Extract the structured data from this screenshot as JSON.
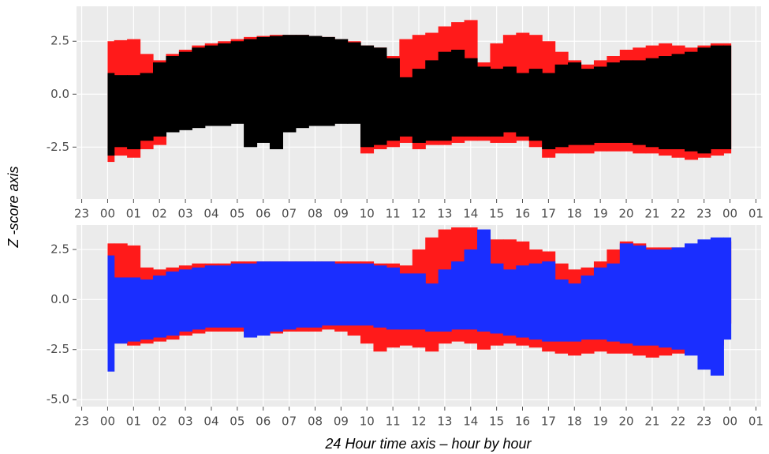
{
  "chart_data": [
    {
      "type": "range_bar",
      "ylabel": "Z -score axis",
      "x": [
        0,
        0.5,
        1,
        1.5,
        2,
        2.5,
        3,
        3.5,
        4,
        4.5,
        5,
        5.5,
        6,
        6.5,
        7,
        7.5,
        8,
        8.5,
        9,
        9.5,
        10,
        10.5,
        11,
        11.5,
        12,
        12.5,
        13,
        13.5,
        14,
        14.5,
        15,
        15.5,
        16,
        16.5,
        17,
        17.5,
        18,
        18.5,
        19,
        19.5,
        20,
        20.5,
        21,
        21.5,
        22,
        22.5,
        23,
        23.5,
        24
      ],
      "xlim": [
        -1.2,
        25.2
      ],
      "xticks": [
        {
          "value": -1,
          "label": "23"
        },
        {
          "value": 0,
          "label": "00"
        },
        {
          "value": 1,
          "label": "01"
        },
        {
          "value": 2,
          "label": "02"
        },
        {
          "value": 3,
          "label": "03"
        },
        {
          "value": 4,
          "label": "04"
        },
        {
          "value": 5,
          "label": "05"
        },
        {
          "value": 6,
          "label": "06"
        },
        {
          "value": 7,
          "label": "07"
        },
        {
          "value": 8,
          "label": "08"
        },
        {
          "value": 9,
          "label": "09"
        },
        10,
        11,
        12,
        13,
        14,
        15,
        16,
        17,
        18,
        19,
        20,
        21,
        22,
        23,
        {
          "value": 24,
          "label": "00"
        },
        {
          "value": 25,
          "label": "01"
        }
      ],
      "ylim": [
        -4.95,
        4.15
      ],
      "yticks": [
        -2.5,
        {
          "value": 0,
          "label": "0.0"
        },
        2.5
      ],
      "grid": true,
      "series": [
        {
          "color": "#ff1a1a",
          "upper": [
            2.5,
            2.55,
            2.6,
            1.9,
            1.6,
            1.9,
            2.1,
            2.3,
            2.4,
            2.5,
            2.6,
            2.7,
            2.75,
            2.8,
            2.8,
            2.8,
            2.75,
            2.7,
            2.6,
            2.5,
            2.3,
            2.2,
            1.8,
            2.6,
            2.8,
            2.9,
            3.2,
            3.4,
            3.5,
            1.5,
            2.4,
            2.8,
            2.9,
            2.8,
            2.5,
            2.0,
            1.6,
            1.4,
            1.6,
            1.8,
            2.1,
            2.2,
            2.3,
            2.4,
            2.3,
            2.2,
            2.3,
            2.4,
            2.4
          ],
          "lower": [
            -3.2,
            -2.9,
            -3.0,
            -2.6,
            -2.4,
            -1.6,
            -1.5,
            -1.4,
            -1.3,
            -1.3,
            -1.3,
            -1.4,
            -1.4,
            -1.5,
            -1.5,
            -1.5,
            -1.4,
            -1.4,
            -1.3,
            -1.3,
            -2.8,
            -2.6,
            -2.5,
            -2.3,
            -2.6,
            -2.4,
            -2.4,
            -2.3,
            -2.2,
            -2.2,
            -2.3,
            -2.3,
            -2.2,
            -2.5,
            -3.0,
            -2.8,
            -2.8,
            -2.8,
            -2.7,
            -2.7,
            -2.7,
            -2.8,
            -2.8,
            -2.9,
            -3.0,
            -3.1,
            -3.0,
            -2.9,
            -2.8
          ]
        },
        {
          "color": "#000000",
          "upper": [
            1.0,
            0.9,
            0.9,
            1.0,
            1.5,
            1.8,
            2.0,
            2.2,
            2.3,
            2.4,
            2.5,
            2.6,
            2.7,
            2.75,
            2.8,
            2.8,
            2.75,
            2.7,
            2.6,
            2.45,
            2.3,
            2.2,
            1.7,
            0.8,
            1.2,
            1.6,
            2.0,
            2.1,
            1.7,
            1.3,
            1.2,
            1.3,
            1.0,
            1.2,
            1.0,
            1.4,
            1.5,
            1.2,
            1.3,
            1.5,
            1.6,
            1.6,
            1.7,
            1.8,
            1.9,
            2.0,
            2.2,
            2.3,
            2.3
          ],
          "lower": [
            -2.9,
            -2.5,
            -2.6,
            -2.2,
            -2.0,
            -1.8,
            -1.7,
            -1.6,
            -1.5,
            -1.5,
            -1.4,
            -2.5,
            -2.3,
            -2.6,
            -1.8,
            -1.6,
            -1.5,
            -1.5,
            -1.4,
            -1.4,
            -2.5,
            -2.4,
            -2.2,
            -2.0,
            -2.3,
            -2.2,
            -2.2,
            -2.0,
            -2.0,
            -2.0,
            -2.0,
            -1.8,
            -2.0,
            -2.2,
            -2.6,
            -2.5,
            -2.4,
            -2.4,
            -2.3,
            -2.3,
            -2.3,
            -2.4,
            -2.5,
            -2.6,
            -2.6,
            -2.7,
            -2.8,
            -2.6,
            -2.6
          ]
        }
      ]
    },
    {
      "type": "range_bar",
      "xlabel": "24 Hour time axis – hour by hour",
      "x": [
        0,
        0.5,
        1,
        1.5,
        2,
        2.5,
        3,
        3.5,
        4,
        4.5,
        5,
        5.5,
        6,
        6.5,
        7,
        7.5,
        8,
        8.5,
        9,
        9.5,
        10,
        10.5,
        11,
        11.5,
        12,
        12.5,
        13,
        13.5,
        14,
        14.5,
        15,
        15.5,
        16,
        16.5,
        17,
        17.5,
        18,
        18.5,
        19,
        19.5,
        20,
        20.5,
        21,
        21.5,
        22,
        22.5,
        23,
        23.5,
        24
      ],
      "xlim": [
        -1.2,
        25.2
      ],
      "xticks": [
        {
          "value": -1,
          "label": "23"
        },
        {
          "value": 0,
          "label": "00"
        },
        {
          "value": 1,
          "label": "01"
        },
        {
          "value": 2,
          "label": "02"
        },
        {
          "value": 3,
          "label": "03"
        },
        {
          "value": 4,
          "label": "04"
        },
        {
          "value": 5,
          "label": "05"
        },
        {
          "value": 6,
          "label": "06"
        },
        {
          "value": 7,
          "label": "07"
        },
        {
          "value": 8,
          "label": "08"
        },
        {
          "value": 9,
          "label": "09"
        },
        10,
        11,
        12,
        13,
        14,
        15,
        16,
        17,
        18,
        19,
        20,
        21,
        22,
        23,
        {
          "value": 24,
          "label": "00"
        },
        {
          "value": 25,
          "label": "01"
        }
      ],
      "ylim": [
        -5.35,
        3.72
      ],
      "yticks": [
        {
          "value": -5,
          "label": "-5.0"
        },
        -2.5,
        {
          "value": 0,
          "label": "0.0"
        },
        2.5
      ],
      "grid": true,
      "series": [
        {
          "color": "#ff1a1a",
          "upper": [
            2.8,
            2.8,
            2.7,
            1.6,
            1.5,
            1.6,
            1.7,
            1.8,
            1.8,
            1.8,
            1.9,
            1.9,
            1.9,
            1.9,
            1.9,
            1.9,
            1.9,
            1.9,
            1.9,
            1.9,
            1.9,
            1.8,
            1.8,
            1.7,
            2.5,
            3.1,
            3.5,
            3.6,
            3.6,
            3.2,
            3.0,
            3.0,
            2.9,
            2.5,
            2.4,
            1.8,
            1.5,
            1.6,
            1.9,
            2.5,
            2.9,
            2.8,
            2.6,
            2.6,
            2.6,
            2.7,
            2.8,
            2.9,
            2.9
          ],
          "lower": [
            -2.2,
            -2.2,
            -2.3,
            -2.2,
            -2.1,
            -2.0,
            -1.8,
            -1.7,
            -1.6,
            -1.6,
            -1.6,
            -1.7,
            -1.7,
            -1.7,
            -1.6,
            -1.6,
            -1.6,
            -1.5,
            -1.6,
            -1.8,
            -2.2,
            -2.6,
            -2.4,
            -2.3,
            -2.4,
            -2.6,
            -2.2,
            -2.1,
            -2.2,
            -2.5,
            -2.3,
            -2.2,
            -2.3,
            -2.4,
            -2.6,
            -2.7,
            -2.8,
            -2.7,
            -2.6,
            -2.7,
            -2.7,
            -2.8,
            -2.9,
            -2.8,
            -2.7,
            -2.6,
            -2.5,
            -2.3,
            -1.2
          ]
        },
        {
          "color": "#1a2eff",
          "upper": [
            2.2,
            1.1,
            1.1,
            1.0,
            1.2,
            1.4,
            1.5,
            1.6,
            1.7,
            1.7,
            1.8,
            1.8,
            1.9,
            1.9,
            1.9,
            1.9,
            1.9,
            1.9,
            1.8,
            1.8,
            1.8,
            1.7,
            1.6,
            1.3,
            1.3,
            0.8,
            1.5,
            1.9,
            2.5,
            3.5,
            1.8,
            1.5,
            1.7,
            1.8,
            1.9,
            1.0,
            0.8,
            1.2,
            1.6,
            1.8,
            2.8,
            2.7,
            2.5,
            2.5,
            2.6,
            2.8,
            3.0,
            3.1,
            3.1
          ],
          "lower": [
            -3.6,
            -2.2,
            -2.1,
            -2.0,
            -1.9,
            -1.8,
            -1.6,
            -1.5,
            -1.4,
            -1.4,
            -1.4,
            -1.9,
            -1.8,
            -1.6,
            -1.5,
            -1.4,
            -1.4,
            -1.3,
            -1.3,
            -1.3,
            -1.3,
            -1.4,
            -1.5,
            -1.5,
            -1.5,
            -1.6,
            -1.6,
            -1.5,
            -1.5,
            -1.6,
            -1.7,
            -1.8,
            -1.9,
            -2.0,
            -2.1,
            -2.1,
            -2.1,
            -2.0,
            -2.0,
            -2.1,
            -2.2,
            -2.3,
            -2.3,
            -2.4,
            -2.5,
            -2.8,
            -3.5,
            -3.8,
            -2.0
          ]
        }
      ]
    }
  ]
}
